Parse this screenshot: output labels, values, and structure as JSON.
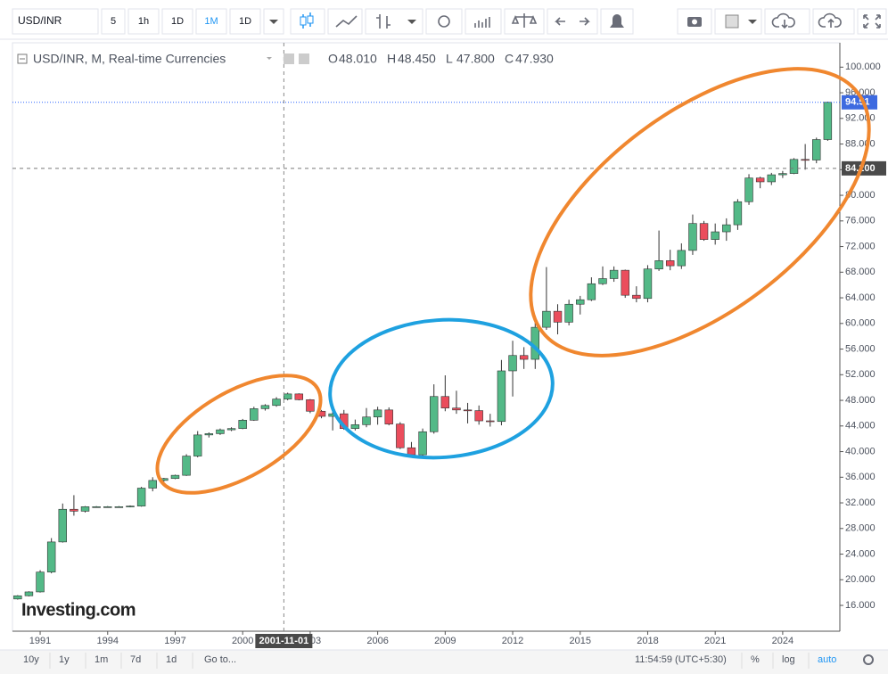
{
  "toolbar": {
    "symbol": "USD/INR",
    "intervals": [
      "5",
      "1h",
      "1D",
      "1M",
      "1D"
    ]
  },
  "chart_data": {
    "type": "candlestick",
    "title": "USD/INR, M, Real-time Currencies",
    "ohlc_labels": [
      "O",
      "H",
      "L",
      "C"
    ],
    "ohlc_values": [
      "48.010",
      "48.450",
      "47.800",
      "47.930"
    ],
    "x": [
      1990,
      1990.5,
      1991,
      1991.5,
      1992,
      1992.5,
      1993,
      1993.5,
      1994,
      1994.5,
      1995,
      1995.5,
      1996,
      1996.5,
      1997,
      1997.5,
      1998,
      1998.5,
      1999,
      1999.5,
      2000,
      2000.5,
      2001,
      2001.5,
      2002,
      2002.5,
      2003,
      2003.5,
      2004,
      2004.5,
      2005,
      2005.5,
      2006,
      2006.5,
      2007,
      2007.5,
      2008,
      2008.5,
      2009,
      2009.5,
      2010,
      2010.5,
      2011,
      2011.5,
      2012,
      2012.5,
      2013,
      2013.5,
      2014,
      2014.5,
      2015,
      2015.5,
      2016,
      2016.5,
      2017,
      2017.5,
      2018,
      2018.5,
      2019,
      2019.5,
      2020,
      2020.5,
      2021,
      2021.5,
      2022,
      2022.5,
      2023,
      2023.5,
      2024,
      2024.5,
      2025,
      2025.5,
      2026
    ],
    "open": [
      17.0,
      17.5,
      18.1,
      21.2,
      25.9,
      31.0,
      30.7,
      31.4,
      31.4,
      31.4,
      31.4,
      31.5,
      34.3,
      35.5,
      35.8,
      36.3,
      39.3,
      42.6,
      42.8,
      43.4,
      43.6,
      44.9,
      46.7,
      47.2,
      48.2,
      49.0,
      48.1,
      46.3,
      45.5,
      45.9,
      43.6,
      44.2,
      45.4,
      46.5,
      44.3,
      40.6,
      39.5,
      43.1,
      48.6,
      46.8,
      46.5,
      46.4,
      44.8,
      44.7,
      52.6,
      55.0,
      54.4,
      59.4,
      61.9,
      60.2,
      63.0,
      63.7,
      66.2,
      67.0,
      68.3,
      64.4,
      63.9,
      68.5,
      69.8,
      69.0,
      71.4,
      75.6,
      73.1,
      74.3,
      75.4,
      79.0,
      82.7,
      82.1,
      83.2,
      83.4,
      85.6,
      85.5,
      88.7
    ],
    "high": [
      17.6,
      18.2,
      21.5,
      26.5,
      31.9,
      33.2,
      31.5,
      31.5,
      31.5,
      31.5,
      31.6,
      34.5,
      36.0,
      35.9,
      36.4,
      39.6,
      43.2,
      43.0,
      43.6,
      43.8,
      45.1,
      47.0,
      47.4,
      48.5,
      49.2,
      49.1,
      48.2,
      46.5,
      46.4,
      46.5,
      45.0,
      46.8,
      47.0,
      46.9,
      44.6,
      41.5,
      43.6,
      50.5,
      51.9,
      49.5,
      47.6,
      47.2,
      45.9,
      54.3,
      57.3,
      56.3,
      61.2,
      68.8,
      63.0,
      63.7,
      64.3,
      67.2,
      68.9,
      68.9,
      68.4,
      65.8,
      69.1,
      74.5,
      71.5,
      72.5,
      77.0,
      76.0,
      75.6,
      76.4,
      79.4,
      83.3,
      82.9,
      83.5,
      83.8,
      85.8,
      88.0,
      89.0,
      94.6
    ],
    "low": [
      16.9,
      17.4,
      18.0,
      21.0,
      25.8,
      30.0,
      30.5,
      31.3,
      31.3,
      31.3,
      31.3,
      31.4,
      33.8,
      35.3,
      35.7,
      36.2,
      39.1,
      42.2,
      42.6,
      43.2,
      43.5,
      44.8,
      46.4,
      47.0,
      48.0,
      48.0,
      46.0,
      45.2,
      43.3,
      43.4,
      43.3,
      43.8,
      44.2,
      44.1,
      40.4,
      39.2,
      39.3,
      42.8,
      46.3,
      45.9,
      44.4,
      44.2,
      43.9,
      44.1,
      48.6,
      52.9,
      52.9,
      59.0,
      58.3,
      59.7,
      61.4,
      63.5,
      66.0,
      66.5,
      64.0,
      63.3,
      63.3,
      68.2,
      68.3,
      68.5,
      70.7,
      72.9,
      72.3,
      72.9,
      74.6,
      78.5,
      81.1,
      81.6,
      82.7,
      83.3,
      84.0,
      85.0,
      88.5
    ],
    "close": [
      17.5,
      18.1,
      21.2,
      25.9,
      31.0,
      30.7,
      31.4,
      31.4,
      31.4,
      31.4,
      31.5,
      34.3,
      35.5,
      35.8,
      36.3,
      39.3,
      42.6,
      42.8,
      43.4,
      43.6,
      44.9,
      46.7,
      47.2,
      48.2,
      49.0,
      48.1,
      46.3,
      45.5,
      45.9,
      43.6,
      44.2,
      45.4,
      46.5,
      44.3,
      40.6,
      39.5,
      43.1,
      48.6,
      46.8,
      46.5,
      46.4,
      44.8,
      44.7,
      52.6,
      55.0,
      54.4,
      59.4,
      61.9,
      60.2,
      63.0,
      63.7,
      66.2,
      67.0,
      68.3,
      64.4,
      63.9,
      68.5,
      69.8,
      69.0,
      71.4,
      75.6,
      73.1,
      74.3,
      75.4,
      79.0,
      82.7,
      82.1,
      83.2,
      83.4,
      85.6,
      85.5,
      88.7,
      94.51
    ],
    "up_color": "#53b987",
    "down_color": "#eb4d5c",
    "xlim": [
      1989.77,
      2026.54
    ],
    "xticks": [
      1991,
      1994,
      1997,
      2000,
      2003,
      2006,
      2009,
      2012,
      2015,
      2018,
      2021,
      2024
    ],
    "ylim": [
      11.97,
      103.8
    ],
    "yticks": [
      {
        "value": 16,
        "label": "16.000"
      },
      {
        "value": 20,
        "label": "20.000"
      },
      {
        "value": 24,
        "label": "24.000"
      },
      {
        "value": 28,
        "label": "28.000"
      },
      {
        "value": 32,
        "label": "32.000"
      },
      {
        "value": 36,
        "label": "36.000"
      },
      {
        "value": 40,
        "label": "40.000"
      },
      {
        "value": 44,
        "label": "44.000"
      },
      {
        "value": 48,
        "label": "48.000"
      },
      {
        "value": 52,
        "label": "52.000"
      },
      {
        "value": 56,
        "label": "56.000"
      },
      {
        "value": 60,
        "label": "60.000"
      },
      {
        "value": 64,
        "label": "64.000"
      },
      {
        "value": 68,
        "label": "68.000"
      },
      {
        "value": 72,
        "label": "72.000"
      },
      {
        "value": 76,
        "label": "76.000"
      },
      {
        "value": 80,
        "label": "80.000"
      },
      {
        "value": 84,
        "label": "84.000"
      },
      {
        "value": 88,
        "label": "88.000"
      },
      {
        "value": 92,
        "label": "92.000"
      },
      {
        "value": 96,
        "label": "96.000"
      },
      {
        "value": 100,
        "label": "100.000"
      }
    ],
    "grid": false,
    "last_price": 94.51,
    "crosshair": {
      "x": 2001.83,
      "x_label": "2001-11-01",
      "y": 84.2,
      "y_label": "84.200"
    },
    "watermark": "Investing.com"
  },
  "bottom_bar": {
    "ranges": [
      "10y",
      "1y",
      "1m",
      "7d",
      "1d"
    ],
    "goto": "Go to...",
    "time": "11:54:59 (UTC+5:30)",
    "options": [
      "%",
      "log",
      "auto"
    ]
  }
}
